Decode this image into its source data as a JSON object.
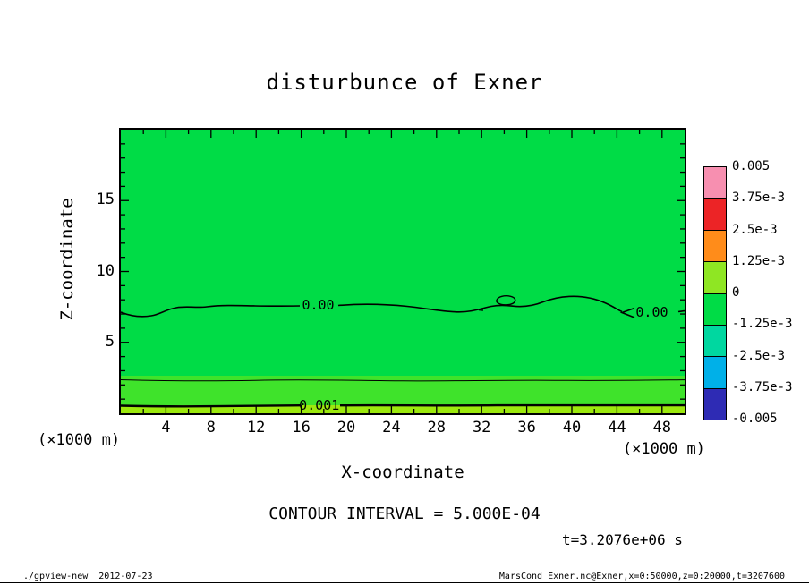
{
  "chart_data": {
    "type": "heatmap",
    "title": "disturbunce of Exner",
    "xlabel": "X-coordinate",
    "ylabel": "Z-coordinate",
    "x_unit_label": "(×1000 m)",
    "y_unit_label": "(×1000 m)",
    "xlim": [
      0,
      50
    ],
    "ylim": [
      0,
      20
    ],
    "x_ticks": [
      4,
      8,
      12,
      16,
      20,
      24,
      28,
      32,
      36,
      40,
      44,
      48
    ],
    "x_minor_tick_step": 2,
    "x_major_tick_every": 4,
    "y_ticks": [
      5,
      10,
      15
    ],
    "y_minor_tick_step": 1,
    "y_major_tick_every": 5,
    "grid": false,
    "contour_interval_label": "CONTOUR INTERVAL = 5.000E-04",
    "time_label": "t=3.2076e+06 s",
    "contour_labels": [
      {
        "text": "0.00",
        "x": 17.5,
        "z": 7.63
      },
      {
        "text": "0.00",
        "x": 47.1,
        "z": 7.13
      },
      {
        "text": "0.001",
        "x": 17.6,
        "z": 0.57
      }
    ],
    "contour_levels_shown": [
      "0.00",
      "0.0005",
      "0.001"
    ],
    "field_colors": {
      "near_zero_green": "#00dc46",
      "positive_band_green": "#3fe32b",
      "surface_band_chartreuse": "#9ce80e"
    },
    "colorbar": {
      "position": "right",
      "tick_labels": [
        "0.005",
        "3.75e-3",
        "2.5e-3",
        "1.25e-3",
        "0",
        "-1.25e-3",
        "-2.5e-3",
        "-3.75e-3",
        "-0.005"
      ],
      "segment_colors_top_to_bottom": [
        "#f78fb0",
        "#ec2426",
        "#ff8c1a",
        "#8fe623",
        "#00dc46",
        "#00d7a0",
        "#00b0e8",
        "#2e2bb4"
      ]
    }
  },
  "footer": {
    "left": "./gpview-new  2012-07-23",
    "right": "MarsCond_Exner.nc@Exner,x=0:50000,z=0:20000,t=3207600"
  }
}
